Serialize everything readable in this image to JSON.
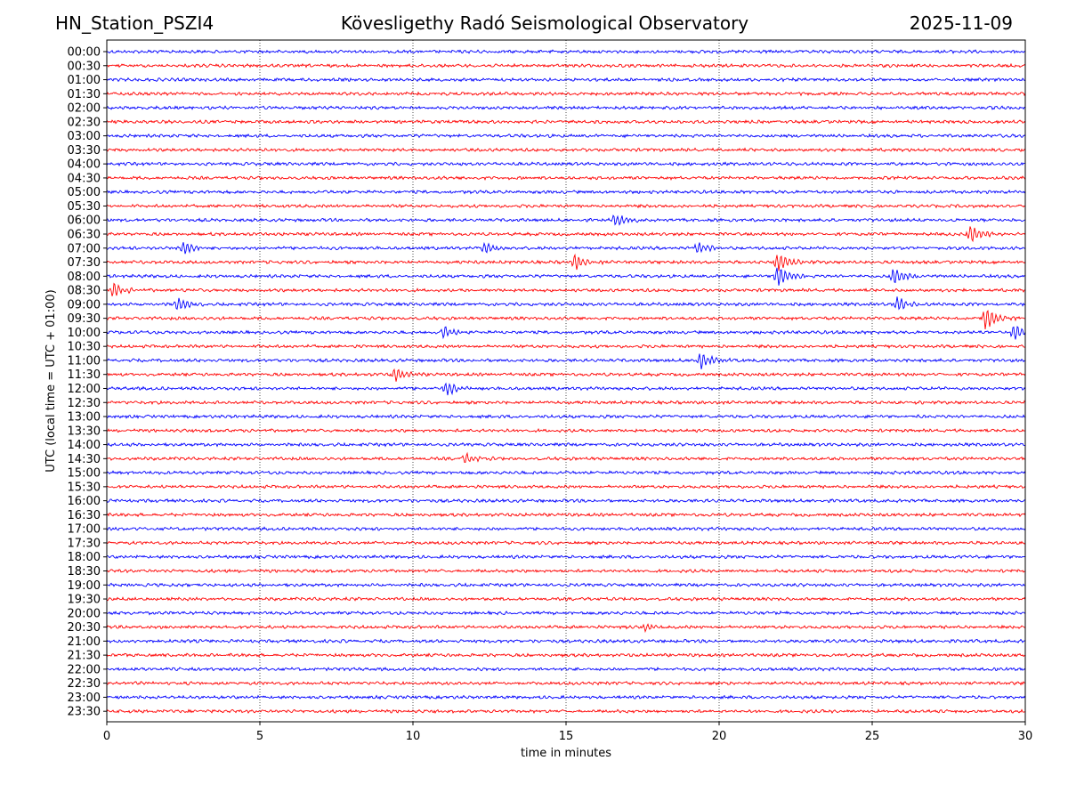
{
  "header": {
    "station": "HN_Station_PSZI4",
    "title": "Kövesligethy Radó Seismological Observatory",
    "date": "2025-11-09"
  },
  "chart_data": {
    "type": "line",
    "title": "Kövesligethy Radó Seismological Observatory",
    "xlabel": "time in minutes",
    "ylabel": "UTC (local time = UTC + 01:00)",
    "xlim": [
      0,
      30
    ],
    "xticks": [
      0,
      5,
      10,
      15,
      20,
      25,
      30
    ],
    "grid": "vertical dotted at each x tick",
    "trace_colors": [
      "#0000ff",
      "#ff0000"
    ],
    "rows": [
      "00:00",
      "00:30",
      "01:00",
      "01:30",
      "02:00",
      "02:30",
      "03:00",
      "03:30",
      "04:00",
      "04:30",
      "05:00",
      "05:30",
      "06:00",
      "06:30",
      "07:00",
      "07:30",
      "08:00",
      "08:30",
      "09:00",
      "09:30",
      "10:00",
      "10:30",
      "11:00",
      "11:30",
      "12:00",
      "12:30",
      "13:00",
      "13:30",
      "14:00",
      "14:30",
      "15:00",
      "15:30",
      "16:00",
      "16:30",
      "17:00",
      "17:30",
      "18:00",
      "18:30",
      "19:00",
      "19:30",
      "20:00",
      "20:30",
      "21:00",
      "21:30",
      "22:00",
      "22:30",
      "23:00",
      "23:30"
    ],
    "events": [
      {
        "row": "06:00",
        "minute": 16.6,
        "amplitude": 0.5
      },
      {
        "row": "06:30",
        "minute": 28.2,
        "amplitude": 0.7
      },
      {
        "row": "07:00",
        "minute": 2.5,
        "amplitude": 0.55
      },
      {
        "row": "07:00",
        "minute": 12.3,
        "amplitude": 0.5
      },
      {
        "row": "07:00",
        "minute": 19.3,
        "amplitude": 0.5
      },
      {
        "row": "07:30",
        "minute": 15.3,
        "amplitude": 0.6
      },
      {
        "row": "07:30",
        "minute": 21.9,
        "amplitude": 0.75
      },
      {
        "row": "08:00",
        "minute": 21.9,
        "amplitude": 0.85
      },
      {
        "row": "08:00",
        "minute": 25.7,
        "amplitude": 0.65
      },
      {
        "row": "08:30",
        "minute": 0.2,
        "amplitude": 0.6
      },
      {
        "row": "09:00",
        "minute": 2.3,
        "amplitude": 0.5
      },
      {
        "row": "09:00",
        "minute": 25.8,
        "amplitude": 0.6
      },
      {
        "row": "09:30",
        "minute": 28.7,
        "amplitude": 0.9
      },
      {
        "row": "10:00",
        "minute": 11.0,
        "amplitude": 0.5
      },
      {
        "row": "10:00",
        "minute": 29.6,
        "amplitude": 0.6
      },
      {
        "row": "11:00",
        "minute": 19.4,
        "amplitude": 0.7
      },
      {
        "row": "11:30",
        "minute": 9.4,
        "amplitude": 0.55
      },
      {
        "row": "12:00",
        "minute": 11.1,
        "amplitude": 0.55
      },
      {
        "row": "14:30",
        "minute": 11.7,
        "amplitude": 0.4
      },
      {
        "row": "20:30",
        "minute": 17.6,
        "amplitude": 0.35
      }
    ]
  }
}
